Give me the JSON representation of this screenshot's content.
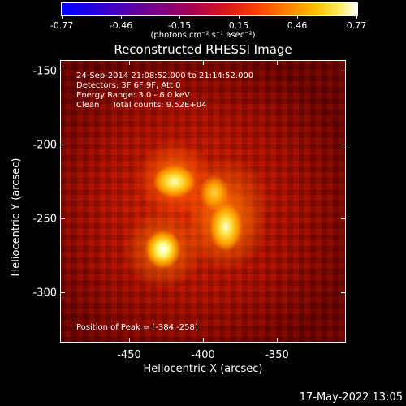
{
  "colorbar": {
    "tick_labels": [
      "-0.77",
      "-0.46",
      "-0.15",
      "0.15",
      "0.46",
      "0.77"
    ],
    "units": "(photons cm⁻² s⁻¹ asec⁻²)"
  },
  "image": {
    "title": "Reconstructed RHESSI Image",
    "info_lines": [
      "24-Sep-2014 21:08:52.000 to 21:14:52.000",
      "Detectors: 3F 6F 9F, Att 0",
      "Energy Range: 3.0 - 6.0 keV",
      "Clean     Total counts: 9.52E+04"
    ],
    "peak_label": "Position of Peak = [-384,-258]"
  },
  "axes": {
    "x_title": "Heliocentric X (arcsec)",
    "y_title": "Heliocentric Y (arcsec)",
    "x_ticks": [
      "-450",
      "-400",
      "-350"
    ],
    "y_ticks": [
      "-150",
      "-200",
      "-250",
      "-300"
    ]
  },
  "footer": {
    "timestamp": "17-May-2022 13:05"
  },
  "colors": {
    "background": "#000000",
    "low": "#6a0000",
    "mid": "#e02000",
    "high": "#ffffff"
  }
}
